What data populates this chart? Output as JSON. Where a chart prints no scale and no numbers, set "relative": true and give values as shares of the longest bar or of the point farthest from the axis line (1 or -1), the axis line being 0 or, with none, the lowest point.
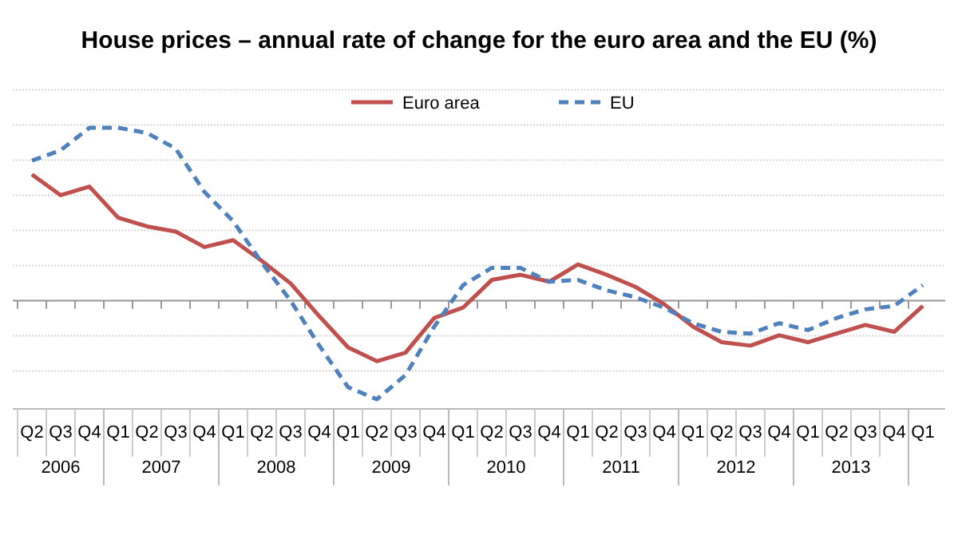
{
  "chart_data": {
    "type": "line",
    "title": "House prices – annual rate of change for the euro area and the EU (%)",
    "relative": true,
    "categories": [
      "Q2",
      "Q3",
      "Q4",
      "Q1",
      "Q2",
      "Q3",
      "Q4",
      "Q1",
      "Q2",
      "Q3",
      "Q4",
      "Q1",
      "Q2",
      "Q3",
      "Q4",
      "Q1",
      "Q2",
      "Q3",
      "Q4",
      "Q1",
      "Q2",
      "Q3",
      "Q4",
      "Q1",
      "Q2",
      "Q3",
      "Q4",
      "Q1",
      "Q2",
      "Q3",
      "Q4",
      "Q1"
    ],
    "series": [
      {
        "name": "Euro area",
        "color": "#c0504d",
        "line_style": "solid",
        "values": [
          0.73,
          0.61,
          0.66,
          0.48,
          0.43,
          0.4,
          0.31,
          0.35,
          0.23,
          0.1,
          -0.09,
          -0.27,
          -0.35,
          -0.3,
          -0.1,
          -0.04,
          0.12,
          0.15,
          0.11,
          0.21,
          0.15,
          0.08,
          -0.02,
          -0.15,
          -0.24,
          -0.26,
          -0.2,
          -0.24,
          -0.19,
          -0.14,
          -0.18,
          -0.03
        ]
      },
      {
        "name": "EU",
        "color": "#4f81bd",
        "line_style": "dashed",
        "values": [
          0.81,
          0.87,
          1,
          1,
          0.97,
          0.88,
          0.63,
          0.46,
          0.22,
          0,
          -0.26,
          -0.5,
          -0.57,
          -0.43,
          -0.15,
          0.09,
          0.19,
          0.19,
          0.11,
          0.12,
          0.06,
          0.02,
          -0.04,
          -0.13,
          -0.18,
          -0.19,
          -0.13,
          -0.17,
          -0.1,
          -0.05,
          -0.03,
          0.09
        ]
      }
    ],
    "annotations": [
      "2006",
      "2007",
      "2008",
      "2009",
      "2010",
      "2011",
      "2012",
      "2013"
    ],
    "grid": "y",
    "legend": "top",
    "marker": "none"
  }
}
